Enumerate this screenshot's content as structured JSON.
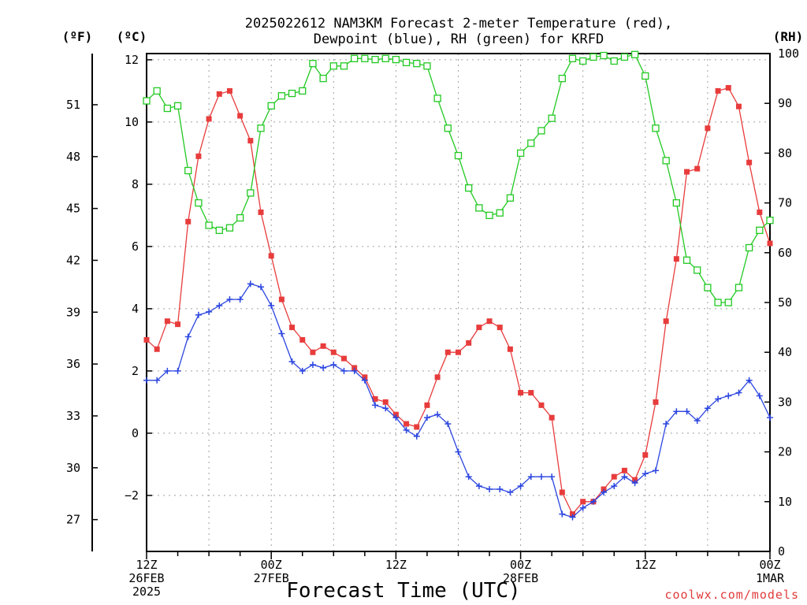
{
  "chart_data": {
    "type": "line",
    "title": [
      "2025022612 NAM3KM Forecast 2-meter Temperature (red),",
      "Dewpoint (blue), RH (green) for KRFD"
    ],
    "xlabel": "Forecast Time (UTC)",
    "watermark": "coolwx.com/models",
    "x_ticks": [
      {
        "hour": 0,
        "lines": [
          "12Z",
          "26FEB",
          "2025"
        ]
      },
      {
        "hour": 12,
        "lines": [
          "00Z",
          "27FEB"
        ]
      },
      {
        "hour": 24,
        "lines": [
          "12Z"
        ]
      },
      {
        "hour": 36,
        "lines": [
          "00Z",
          "28FEB"
        ]
      },
      {
        "hour": 48,
        "lines": [
          "12Z"
        ]
      },
      {
        "hour": 60,
        "lines": [
          "00Z",
          "1MAR"
        ]
      }
    ],
    "xlim": [
      0,
      60
    ],
    "left_axis": {
      "unit": "(ºC)",
      "ylim": [
        -3.8,
        12.2
      ],
      "ticks": [
        -2,
        0,
        2,
        4,
        6,
        8,
        10,
        12
      ],
      "tick_labels": [
        "−2",
        "0",
        "2",
        "4",
        "6",
        "8",
        "10",
        "12"
      ]
    },
    "f_axis": {
      "unit": "(ºF)",
      "ticks": [
        27,
        30,
        33,
        36,
        39,
        42,
        45,
        48,
        51
      ],
      "tick_labels": [
        "27",
        "30",
        "33",
        "36",
        "39",
        "42",
        "45",
        "48",
        "51"
      ]
    },
    "right_axis": {
      "unit": "(RH)",
      "ylim": [
        0,
        100
      ],
      "ticks": [
        0,
        10,
        20,
        30,
        40,
        50,
        60,
        70,
        80,
        90,
        100
      ],
      "tick_labels": [
        "0",
        "10",
        "20",
        "30",
        "40",
        "50",
        "60",
        "70",
        "80",
        "90",
        "100"
      ]
    },
    "grid": true,
    "series": [
      {
        "name": "Temperature",
        "axis": "left",
        "color": "#e83c3c",
        "marker": "filled-square",
        "x": [
          0,
          1,
          2,
          3,
          4,
          5,
          6,
          7,
          8,
          9,
          10,
          11,
          12,
          13,
          14,
          15,
          16,
          17,
          18,
          19,
          20,
          21,
          22,
          23,
          24,
          25,
          26,
          27,
          28,
          29,
          30,
          31,
          32,
          33,
          34,
          35,
          36,
          37,
          38,
          39,
          40,
          41,
          42,
          43,
          44,
          45,
          46,
          47,
          48,
          49,
          50,
          51,
          52,
          53,
          54,
          55,
          56,
          57,
          58,
          59,
          60
        ],
        "values": [
          3.0,
          2.7,
          3.6,
          3.5,
          6.8,
          8.9,
          10.1,
          10.9,
          11.0,
          10.2,
          9.4,
          7.1,
          5.7,
          4.3,
          3.4,
          3.0,
          2.6,
          2.8,
          2.6,
          2.4,
          2.1,
          1.8,
          1.1,
          1.0,
          0.6,
          0.3,
          0.2,
          0.9,
          1.8,
          2.6,
          2.6,
          2.9,
          3.4,
          3.6,
          3.4,
          2.7,
          1.3,
          1.3,
          0.9,
          0.5,
          -1.9,
          -2.6,
          -2.2,
          -2.2,
          -1.8,
          -1.4,
          -1.2,
          -1.5,
          -0.7,
          1.0,
          3.6,
          5.6,
          8.4,
          8.5,
          9.8,
          11.0,
          11.1,
          10.5,
          8.7,
          7.1,
          6.1
        ]
      },
      {
        "name": "Dewpoint",
        "axis": "left",
        "color": "#2b45e0",
        "marker": "plus",
        "x": [
          0,
          1,
          2,
          3,
          4,
          5,
          6,
          7,
          8,
          9,
          10,
          11,
          12,
          13,
          14,
          15,
          16,
          17,
          18,
          19,
          20,
          21,
          22,
          23,
          24,
          25,
          26,
          27,
          28,
          29,
          30,
          31,
          32,
          33,
          34,
          35,
          36,
          37,
          38,
          39,
          40,
          41,
          42,
          43,
          44,
          45,
          46,
          47,
          48,
          49,
          50,
          51,
          52,
          53,
          54,
          55,
          56,
          57,
          58,
          59,
          60
        ],
        "values": [
          1.7,
          1.7,
          2.0,
          2.0,
          3.1,
          3.8,
          3.9,
          4.1,
          4.3,
          4.3,
          4.8,
          4.7,
          4.1,
          3.2,
          2.3,
          2.0,
          2.2,
          2.1,
          2.2,
          2.0,
          2.0,
          1.7,
          0.9,
          0.8,
          0.5,
          0.1,
          -0.1,
          0.5,
          0.6,
          0.3,
          -0.6,
          -1.4,
          -1.7,
          -1.8,
          -1.8,
          -1.9,
          -1.7,
          -1.4,
          -1.4,
          -1.4,
          -2.6,
          -2.7,
          -2.4,
          -2.2,
          -1.9,
          -1.7,
          -1.4,
          -1.6,
          -1.3,
          -1.2,
          0.3,
          0.7,
          0.7,
          0.4,
          0.8,
          1.1,
          1.2,
          1.3,
          1.7,
          1.2,
          0.5
        ]
      },
      {
        "name": "RH",
        "axis": "right",
        "color": "#22c922",
        "marker": "open-square",
        "x": [
          0,
          1,
          2,
          3,
          4,
          5,
          6,
          7,
          8,
          9,
          10,
          11,
          12,
          13,
          14,
          15,
          16,
          17,
          18,
          19,
          20,
          21,
          22,
          23,
          24,
          25,
          26,
          27,
          28,
          29,
          30,
          31,
          32,
          33,
          34,
          35,
          36,
          37,
          38,
          39,
          40,
          41,
          42,
          43,
          44,
          45,
          46,
          47,
          48,
          49,
          50,
          51,
          52,
          53,
          54,
          55,
          56,
          57,
          58,
          59,
          60
        ],
        "values": [
          90.5,
          92.5,
          89,
          89.5,
          76.5,
          70,
          65.5,
          64.5,
          65,
          67,
          72,
          85,
          89.5,
          91.5,
          92,
          92.5,
          98,
          95,
          97.5,
          97.5,
          99,
          99,
          98.8,
          99,
          98.8,
          98.2,
          98,
          97.5,
          91,
          85,
          79.5,
          73,
          69,
          67.5,
          68,
          71,
          80,
          82,
          84.5,
          87,
          95,
          99,
          98.5,
          99.3,
          99.6,
          98.5,
          99.3,
          99.8,
          95.5,
          85,
          78.5,
          70,
          58.5,
          56.5,
          53,
          50,
          50,
          53,
          61,
          64.5,
          66.5
        ]
      }
    ]
  }
}
